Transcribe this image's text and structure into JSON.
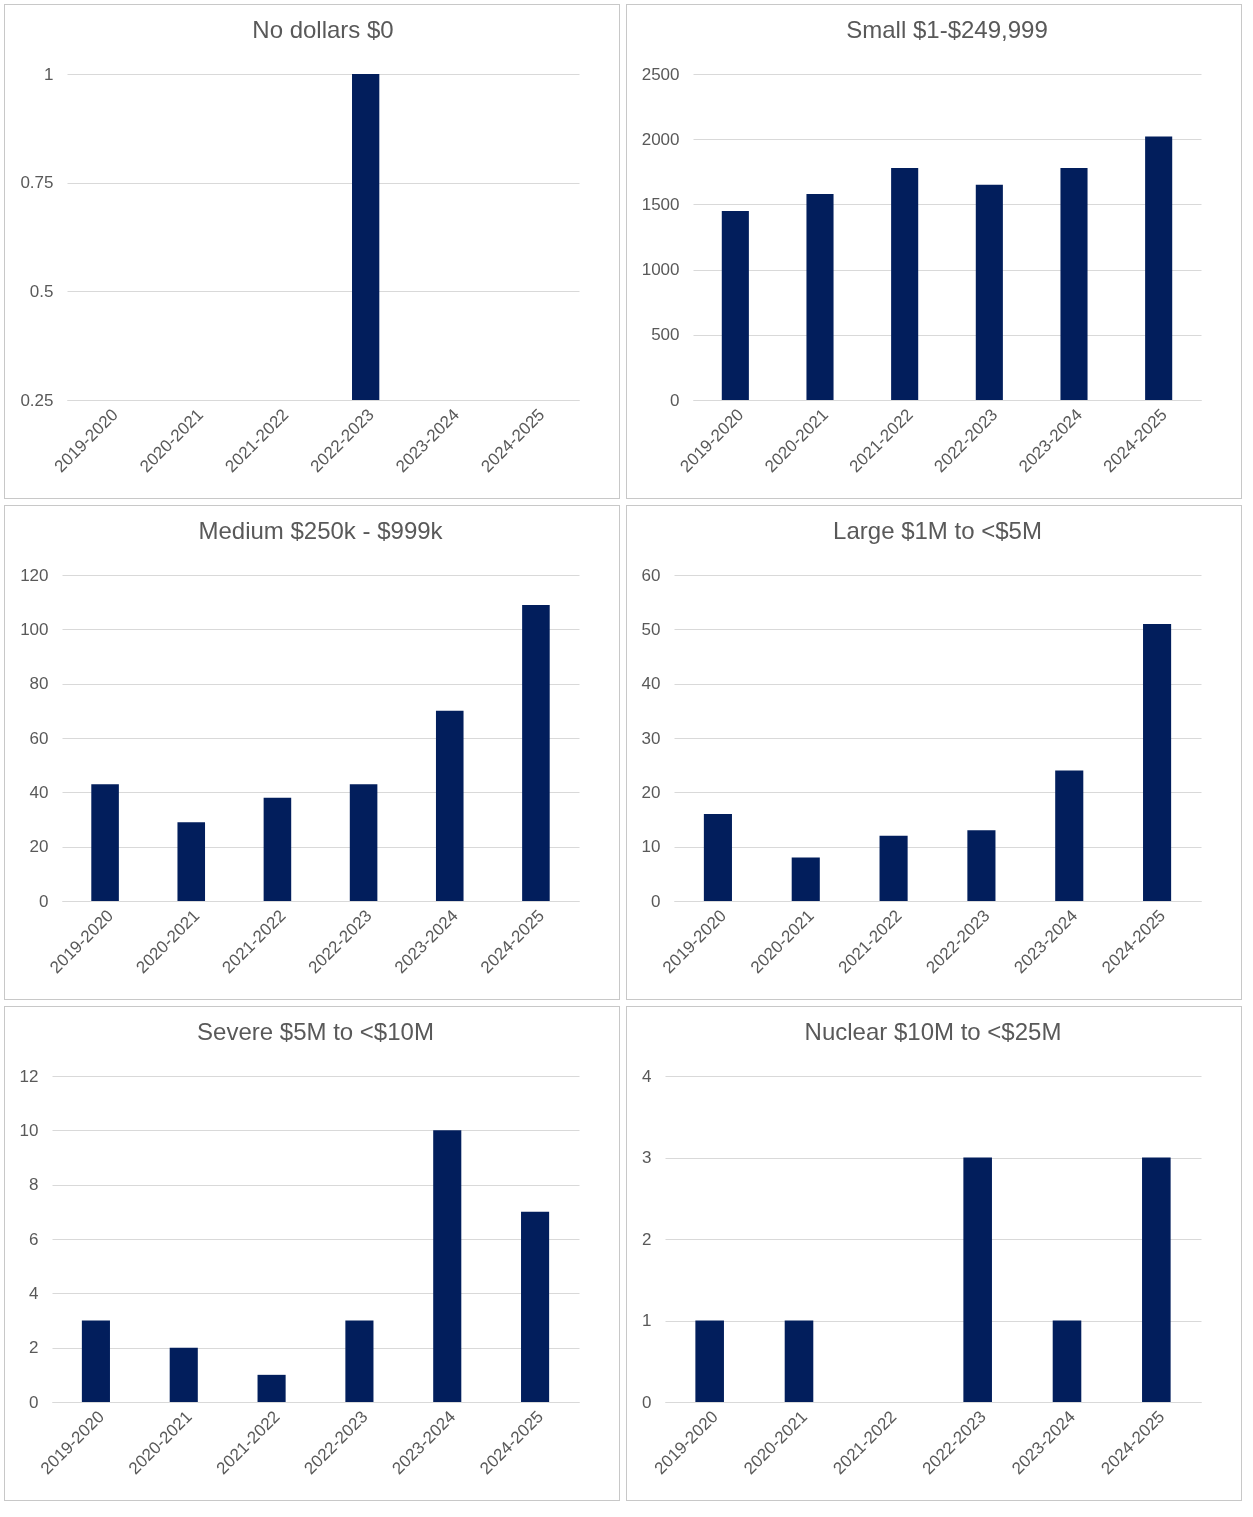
{
  "chart_data": [
    {
      "type": "bar",
      "title": "No dollars $0",
      "categories": [
        "2019-2020",
        "2020-2021",
        "2021-2022",
        "2022-2023",
        "2023-2024",
        "2024-2025"
      ],
      "values": [
        null,
        null,
        null,
        1,
        null,
        null
      ],
      "color": "#021e5c",
      "ylim": [
        0.25,
        1
      ],
      "yticks": [
        0.25,
        0.5,
        0.75,
        1
      ],
      "grid": "y"
    },
    {
      "type": "bar",
      "title": "Small $1-$249,999",
      "categories": [
        "2019-2020",
        "2020-2021",
        "2021-2022",
        "2022-2023",
        "2023-2024",
        "2024-2025"
      ],
      "values": [
        1450,
        1580,
        1780,
        1650,
        1780,
        2020
      ],
      "color": "#021e5c",
      "ylim": [
        0,
        2500
      ],
      "yticks": [
        0,
        500,
        1000,
        1500,
        2000,
        2500
      ],
      "grid": "y"
    },
    {
      "type": "bar",
      "title": "Medium $250k - $999k",
      "categories": [
        "2019-2020",
        "2020-2021",
        "2021-2022",
        "2022-2023",
        "2023-2024",
        "2024-2025"
      ],
      "values": [
        43,
        29,
        38,
        43,
        70,
        109
      ],
      "color": "#021e5c",
      "ylim": [
        0,
        120
      ],
      "yticks": [
        0,
        20,
        40,
        60,
        80,
        100,
        120
      ],
      "grid": "y"
    },
    {
      "type": "bar",
      "title": "Large $1M to <$5M",
      "categories": [
        "2019-2020",
        "2020-2021",
        "2021-2022",
        "2022-2023",
        "2023-2024",
        "2024-2025"
      ],
      "values": [
        16,
        8,
        12,
        13,
        24,
        51
      ],
      "color": "#021e5c",
      "ylim": [
        0,
        60
      ],
      "yticks": [
        0,
        10,
        20,
        30,
        40,
        50,
        60
      ],
      "grid": "y"
    },
    {
      "type": "bar",
      "title": "Severe $5M to <$10M",
      "categories": [
        "2019-2020",
        "2020-2021",
        "2021-2022",
        "2022-2023",
        "2023-2024",
        "2024-2025"
      ],
      "values": [
        3,
        2,
        1,
        3,
        10,
        7
      ],
      "color": "#021e5c",
      "ylim": [
        0,
        12
      ],
      "yticks": [
        0,
        2,
        4,
        6,
        8,
        10,
        12
      ],
      "grid": "y"
    },
    {
      "type": "bar",
      "title": "Nuclear $10M to <$25M",
      "categories": [
        "2019-2020",
        "2020-2021",
        "2021-2022",
        "2022-2023",
        "2023-2024",
        "2024-2025"
      ],
      "values": [
        1,
        1,
        0,
        3,
        1,
        3
      ],
      "color": "#021e5c",
      "ylim": [
        0,
        4
      ],
      "yticks": [
        0,
        1,
        2,
        3,
        4
      ],
      "grid": "y"
    }
  ]
}
